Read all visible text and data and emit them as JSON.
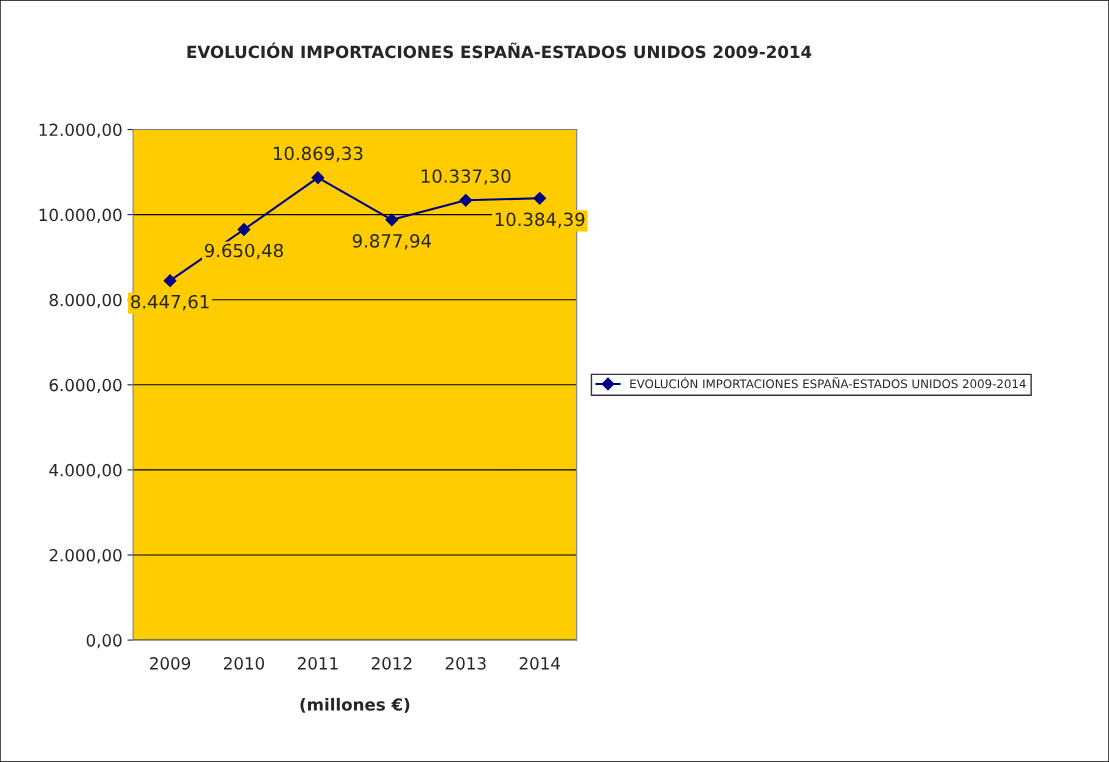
{
  "chart_data": {
    "type": "line",
    "title": "EVOLUCIÓN IMPORTACIONES ESPAÑA-ESTADOS UNIDOS 2009-2014",
    "xlabel": "(millones €)",
    "categories": [
      "2009",
      "2010",
      "2011",
      "2012",
      "2013",
      "2014"
    ],
    "series": [
      {
        "name": "EVOLUCIÓN IMPORTACIONES ESPAÑA-ESTADOS UNIDOS 2009-2014",
        "color": "#000080",
        "values": [
          8447.61,
          9650.48,
          10869.33,
          9877.94,
          10337.3,
          10384.39
        ],
        "value_labels": [
          "8.447,61",
          "9.650,48",
          "10.869,33",
          "9.877,94",
          "10.337,30",
          "10.384,39"
        ]
      }
    ],
    "ylim": [
      0,
      12000
    ],
    "yticks": [
      {
        "value": 0,
        "label": "0,00"
      },
      {
        "value": 2000,
        "label": "2.000,00"
      },
      {
        "value": 4000,
        "label": "4.000,00"
      },
      {
        "value": 6000,
        "label": "6.000,00"
      },
      {
        "value": 8000,
        "label": "8.000,00"
      },
      {
        "value": 10000,
        "label": "10.000,00"
      },
      {
        "value": 12000,
        "label": "12.000,00"
      }
    ],
    "grid": "y",
    "legend": "right",
    "marker": "diamond",
    "line_style": "solid"
  }
}
